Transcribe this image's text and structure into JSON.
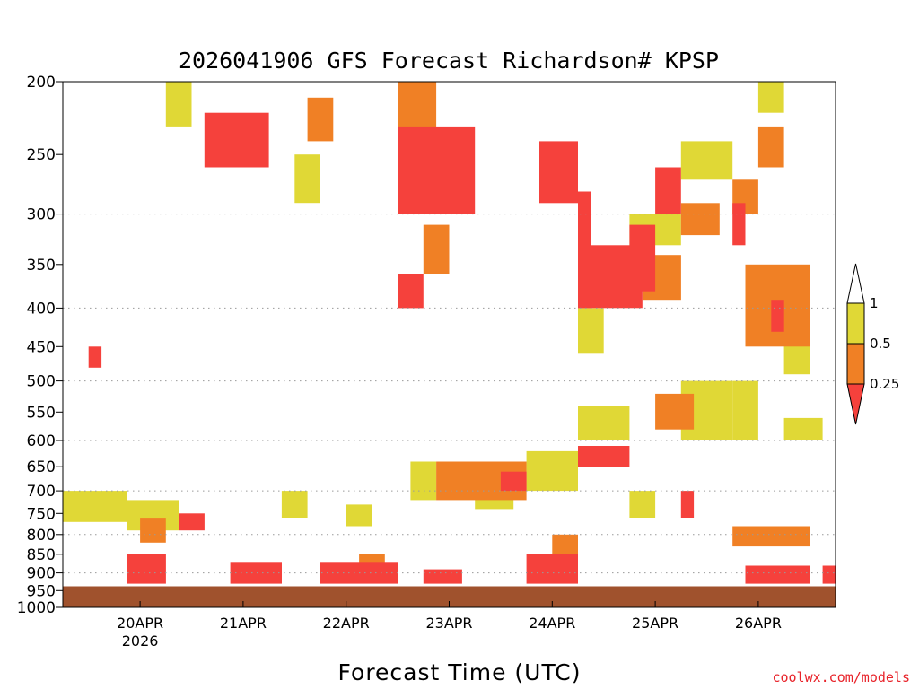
{
  "chart_data": {
    "type": "heatmap",
    "title": "2026041906 GFS Forecast Richardson# KPSP",
    "xlabel": "Forecast Time (UTC)",
    "ylabel": "",
    "credit": "coolwx.com/models",
    "y_scale": "log",
    "y_inverted": true,
    "ylim": [
      1000,
      200
    ],
    "xlim": [
      "2026-04-19T06:00Z",
      "2026-04-26T18:00Z"
    ],
    "y_ticks": [
      200,
      250,
      300,
      350,
      400,
      450,
      500,
      550,
      600,
      650,
      700,
      750,
      800,
      850,
      900,
      950,
      1000
    ],
    "y_gridlines": [
      300,
      400,
      500,
      600,
      700,
      800,
      900,
      1000
    ],
    "x_ticks": [
      {
        "time": "2026-04-20T00:00Z",
        "label": "20APR",
        "sublabel": "2026"
      },
      {
        "time": "2026-04-21T00:00Z",
        "label": "21APR",
        "sublabel": ""
      },
      {
        "time": "2026-04-22T00:00Z",
        "label": "22APR",
        "sublabel": ""
      },
      {
        "time": "2026-04-23T00:00Z",
        "label": "23APR",
        "sublabel": ""
      },
      {
        "time": "2026-04-24T00:00Z",
        "label": "24APR",
        "sublabel": ""
      },
      {
        "time": "2026-04-25T00:00Z",
        "label": "25APR",
        "sublabel": ""
      },
      {
        "time": "2026-04-26T00:00Z",
        "label": "26APR",
        "sublabel": ""
      }
    ],
    "legend": {
      "placement": "right",
      "levels": [
        "1",
        "0.5",
        "0.25"
      ],
      "bins": [
        {
          "range": "> 1",
          "color": "#ffffff"
        },
        {
          "range": "0.5 - 1",
          "color": "#e0d836"
        },
        {
          "range": "0.25 - 0.5",
          "color": "#f08025"
        },
        {
          "range": "< 0.25",
          "color": "#f5413c"
        }
      ]
    },
    "ground": {
      "color": "#a0522d",
      "top_pressure": 935
    },
    "colors": {
      "yellow": "#e0d836",
      "orange": "#f08025",
      "red": "#f5413c",
      "ground": "#a0522d",
      "grid": "#9a9a9a",
      "credit": "#e8232a"
    },
    "series": [
      {
        "name": "0.5 - 1",
        "color": "#e0d836",
        "regions": [
          {
            "t": [
              "2026-04-19T06:00Z",
              "2026-04-19T21:00Z"
            ],
            "p": [
              700,
              770
            ]
          },
          {
            "t": [
              "2026-04-19T21:00Z",
              "2026-04-20T09:00Z"
            ],
            "p": [
              720,
              790
            ]
          },
          {
            "t": [
              "2026-04-20T06:00Z",
              "2026-04-20T12:00Z"
            ],
            "p": [
              200,
              230
            ]
          },
          {
            "t": [
              "2026-04-21T09:00Z",
              "2026-04-21T15:00Z"
            ],
            "p": [
              700,
              760
            ]
          },
          {
            "t": [
              "2026-04-21T12:00Z",
              "2026-04-21T18:00Z"
            ],
            "p": [
              250,
              290
            ]
          },
          {
            "t": [
              "2026-04-22T00:00Z",
              "2026-04-22T06:00Z"
            ],
            "p": [
              730,
              780
            ]
          },
          {
            "t": [
              "2026-04-22T15:00Z",
              "2026-04-22T21:00Z"
            ],
            "p": [
              260,
              290
            ]
          },
          {
            "t": [
              "2026-04-22T15:00Z",
              "2026-04-22T21:00Z"
            ],
            "p": [
              640,
              720
            ]
          },
          {
            "t": [
              "2026-04-23T06:00Z",
              "2026-04-23T15:00Z"
            ],
            "p": [
              650,
              740
            ]
          },
          {
            "t": [
              "2026-04-23T18:00Z",
              "2026-04-24T06:00Z"
            ],
            "p": [
              620,
              700
            ]
          },
          {
            "t": [
              "2026-04-24T06:00Z",
              "2026-04-24T12:00Z"
            ],
            "p": [
              400,
              460
            ]
          },
          {
            "t": [
              "2026-04-24T06:00Z",
              "2026-04-24T18:00Z"
            ],
            "p": [
              540,
              600
            ]
          },
          {
            "t": [
              "2026-04-24T18:00Z",
              "2026-04-25T06:00Z"
            ],
            "p": [
              300,
              330
            ]
          },
          {
            "t": [
              "2026-04-24T18:00Z",
              "2026-04-25T00:00Z"
            ],
            "p": [
              700,
              760
            ]
          },
          {
            "t": [
              "2026-04-25T06:00Z",
              "2026-04-25T18:00Z"
            ],
            "p": [
              240,
              270
            ]
          },
          {
            "t": [
              "2026-04-25T06:00Z",
              "2026-04-25T18:00Z"
            ],
            "p": [
              500,
              600
            ]
          },
          {
            "t": [
              "2026-04-25T18:00Z",
              "2026-04-26T00:00Z"
            ],
            "p": [
              500,
              600
            ]
          },
          {
            "t": [
              "2026-04-26T00:00Z",
              "2026-04-26T06:00Z"
            ],
            "p": [
              200,
              220
            ]
          },
          {
            "t": [
              "2026-04-26T06:00Z",
              "2026-04-26T12:00Z"
            ],
            "p": [
              420,
              490
            ]
          },
          {
            "t": [
              "2026-04-26T06:00Z",
              "2026-04-26T15:00Z"
            ],
            "p": [
              560,
              600
            ]
          }
        ]
      },
      {
        "name": "0.25 - 0.5",
        "color": "#f08025",
        "regions": [
          {
            "t": [
              "2026-04-20T00:00Z",
              "2026-04-20T06:00Z"
            ],
            "p": [
              760,
              820
            ]
          },
          {
            "t": [
              "2026-04-21T15:00Z",
              "2026-04-21T21:00Z"
            ],
            "p": [
              210,
              240
            ]
          },
          {
            "t": [
              "2026-04-22T03:00Z",
              "2026-04-22T09:00Z"
            ],
            "p": [
              850,
              900
            ]
          },
          {
            "t": [
              "2026-04-22T12:00Z",
              "2026-04-22T21:00Z"
            ],
            "p": [
              200,
              260
            ]
          },
          {
            "t": [
              "2026-04-22T18:00Z",
              "2026-04-23T00:00Z"
            ],
            "p": [
              310,
              360
            ]
          },
          {
            "t": [
              "2026-04-22T21:00Z",
              "2026-04-23T18:00Z"
            ],
            "p": [
              640,
              720
            ]
          },
          {
            "t": [
              "2026-04-24T00:00Z",
              "2026-04-24T06:00Z"
            ],
            "p": [
              800,
              860
            ]
          },
          {
            "t": [
              "2026-04-24T21:00Z",
              "2026-04-25T06:00Z"
            ],
            "p": [
              340,
              390
            ]
          },
          {
            "t": [
              "2026-04-25T00:00Z",
              "2026-04-25T09:00Z"
            ],
            "p": [
              520,
              580
            ]
          },
          {
            "t": [
              "2026-04-25T06:00Z",
              "2026-04-25T15:00Z"
            ],
            "p": [
              290,
              320
            ]
          },
          {
            "t": [
              "2026-04-25T18:00Z",
              "2026-04-26T00:00Z"
            ],
            "p": [
              270,
              300
            ]
          },
          {
            "t": [
              "2026-04-25T21:00Z",
              "2026-04-26T12:00Z"
            ],
            "p": [
              350,
              450
            ]
          },
          {
            "t": [
              "2026-04-25T18:00Z",
              "2026-04-26T12:00Z"
            ],
            "p": [
              780,
              830
            ]
          },
          {
            "t": [
              "2026-04-26T00:00Z",
              "2026-04-26T06:00Z"
            ],
            "p": [
              230,
              260
            ]
          }
        ]
      },
      {
        "name": "< 0.25",
        "color": "#f5413c",
        "regions": [
          {
            "t": [
              "2026-04-19T12:00Z",
              "2026-04-19T15:00Z"
            ],
            "p": [
              450,
              480
            ]
          },
          {
            "t": [
              "2026-04-19T21:00Z",
              "2026-04-20T06:00Z"
            ],
            "p": [
              850,
              930
            ]
          },
          {
            "t": [
              "2026-04-20T09:00Z",
              "2026-04-20T15:00Z"
            ],
            "p": [
              750,
              790
            ]
          },
          {
            "t": [
              "2026-04-20T15:00Z",
              "2026-04-21T06:00Z"
            ],
            "p": [
              220,
              260
            ]
          },
          {
            "t": [
              "2026-04-20T21:00Z",
              "2026-04-21T09:00Z"
            ],
            "p": [
              870,
              930
            ]
          },
          {
            "t": [
              "2026-04-21T18:00Z",
              "2026-04-22T12:00Z"
            ],
            "p": [
              870,
              930
            ]
          },
          {
            "t": [
              "2026-04-22T12:00Z",
              "2026-04-22T18:00Z"
            ],
            "p": [
              360,
              400
            ]
          },
          {
            "t": [
              "2026-04-22T12:00Z",
              "2026-04-23T06:00Z"
            ],
            "p": [
              230,
              300
            ]
          },
          {
            "t": [
              "2026-04-22T18:00Z",
              "2026-04-23T03:00Z"
            ],
            "p": [
              890,
              930
            ]
          },
          {
            "t": [
              "2026-04-23T12:00Z",
              "2026-04-23T18:00Z"
            ],
            "p": [
              660,
              700
            ]
          },
          {
            "t": [
              "2026-04-23T18:00Z",
              "2026-04-24T06:00Z"
            ],
            "p": [
              850,
              930
            ]
          },
          {
            "t": [
              "2026-04-23T21:00Z",
              "2026-04-24T06:00Z"
            ],
            "p": [
              240,
              290
            ]
          },
          {
            "t": [
              "2026-04-24T06:00Z",
              "2026-04-24T09:00Z"
            ],
            "p": [
              280,
              400
            ]
          },
          {
            "t": [
              "2026-04-24T06:00Z",
              "2026-04-24T18:00Z"
            ],
            "p": [
              610,
              650
            ]
          },
          {
            "t": [
              "2026-04-24T09:00Z",
              "2026-04-24T21:00Z"
            ],
            "p": [
              330,
              400
            ]
          },
          {
            "t": [
              "2026-04-24T18:00Z",
              "2026-04-25T00:00Z"
            ],
            "p": [
              310,
              380
            ]
          },
          {
            "t": [
              "2026-04-25T00:00Z",
              "2026-04-25T06:00Z"
            ],
            "p": [
              260,
              300
            ]
          },
          {
            "t": [
              "2026-04-25T06:00Z",
              "2026-04-25T09:00Z"
            ],
            "p": [
              700,
              760
            ]
          },
          {
            "t": [
              "2026-04-25T18:00Z",
              "2026-04-25T21:00Z"
            ],
            "p": [
              290,
              330
            ]
          },
          {
            "t": [
              "2026-04-25T21:00Z",
              "2026-04-26T12:00Z"
            ],
            "p": [
              880,
              930
            ]
          },
          {
            "t": [
              "2026-04-26T03:00Z",
              "2026-04-26T06:00Z"
            ],
            "p": [
              390,
              430
            ]
          },
          {
            "t": [
              "2026-04-26T15:00Z",
              "2026-04-26T18:00Z"
            ],
            "p": [
              880,
              930
            ]
          }
        ]
      }
    ]
  }
}
